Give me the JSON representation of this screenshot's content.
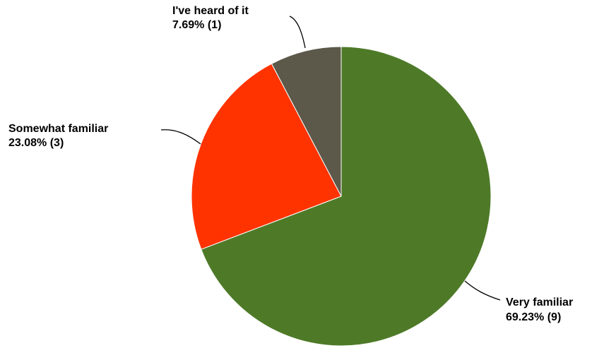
{
  "chart_data": {
    "type": "pie",
    "title": "",
    "start_angle_deg": 0,
    "direction": "clockwise",
    "slices": [
      {
        "label": "Very familiar",
        "value": 9,
        "percent": "69.23%",
        "color": "#4e7a28"
      },
      {
        "label": "Somewhat familiar",
        "value": 3,
        "percent": "23.08%",
        "color": "#ff3300"
      },
      {
        "label": "I've heard of it",
        "value": 1,
        "percent": "7.69%",
        "color": "#5c594a"
      }
    ]
  }
}
